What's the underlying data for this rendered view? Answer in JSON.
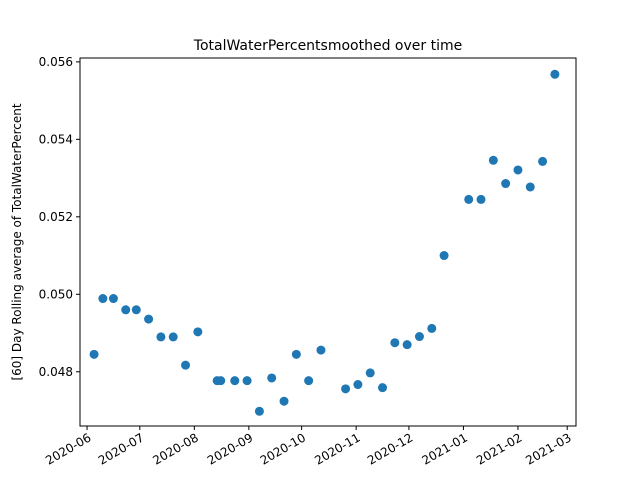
{
  "chart_data": {
    "type": "scatter",
    "title": "TotalWaterPercentsmoothed over time",
    "xlabel": "",
    "ylabel": "[60] Day Rolling average of TotalWaterPercent",
    "xlim": [
      "2020-05-28",
      "2021-03-06"
    ],
    "ylim": [
      0.0466,
      0.0561
    ],
    "x_ticks": [
      "2020-06",
      "2020-07",
      "2020-08",
      "2020-09",
      "2020-10",
      "2020-11",
      "2020-12",
      "2021-01",
      "2021-02",
      "2021-03"
    ],
    "y_ticks": [
      0.048,
      0.05,
      0.052,
      0.054,
      0.056
    ],
    "y_tick_labels": [
      "0.048",
      "0.050",
      "0.052",
      "0.054",
      "0.056"
    ],
    "grid": false,
    "color": "#1f77b4",
    "points": [
      {
        "x": "2020-06-05",
        "y": 0.04845
      },
      {
        "x": "2020-06-10",
        "y": 0.04989
      },
      {
        "x": "2020-06-16",
        "y": 0.04989
      },
      {
        "x": "2020-06-23",
        "y": 0.0496
      },
      {
        "x": "2020-06-29",
        "y": 0.0496
      },
      {
        "x": "2020-07-06",
        "y": 0.04936
      },
      {
        "x": "2020-07-13",
        "y": 0.0489
      },
      {
        "x": "2020-07-20",
        "y": 0.0489
      },
      {
        "x": "2020-07-27",
        "y": 0.04817
      },
      {
        "x": "2020-08-03",
        "y": 0.04903
      },
      {
        "x": "2020-08-14",
        "y": 0.04777
      },
      {
        "x": "2020-08-16",
        "y": 0.04777
      },
      {
        "x": "2020-08-24",
        "y": 0.04777
      },
      {
        "x": "2020-08-31",
        "y": 0.04777
      },
      {
        "x": "2020-09-07",
        "y": 0.04698
      },
      {
        "x": "2020-09-14",
        "y": 0.04784
      },
      {
        "x": "2020-09-21",
        "y": 0.04724
      },
      {
        "x": "2020-09-28",
        "y": 0.04845
      },
      {
        "x": "2020-10-05",
        "y": 0.04777
      },
      {
        "x": "2020-10-12",
        "y": 0.04856
      },
      {
        "x": "2020-10-26",
        "y": 0.04756
      },
      {
        "x": "2020-11-02",
        "y": 0.04767
      },
      {
        "x": "2020-11-09",
        "y": 0.04797
      },
      {
        "x": "2020-11-16",
        "y": 0.04759
      },
      {
        "x": "2020-11-23",
        "y": 0.04875
      },
      {
        "x": "2020-11-30",
        "y": 0.0487
      },
      {
        "x": "2020-12-07",
        "y": 0.04891
      },
      {
        "x": "2020-12-14",
        "y": 0.04912
      },
      {
        "x": "2020-12-21",
        "y": 0.051
      },
      {
        "x": "2021-01-04",
        "y": 0.05245
      },
      {
        "x": "2021-01-11",
        "y": 0.05245
      },
      {
        "x": "2021-01-18",
        "y": 0.05346
      },
      {
        "x": "2021-01-25",
        "y": 0.05286
      },
      {
        "x": "2021-02-01",
        "y": 0.05321
      },
      {
        "x": "2021-02-08",
        "y": 0.05277
      },
      {
        "x": "2021-02-15",
        "y": 0.05343
      },
      {
        "x": "2021-02-22",
        "y": 0.05568
      }
    ]
  }
}
